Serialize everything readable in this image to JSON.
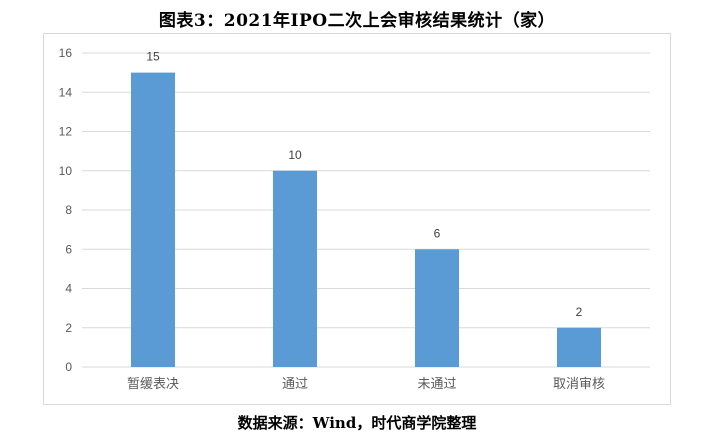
{
  "title": "图表3：2021年IPO二次上会审核结果统计（家）",
  "source": "数据来源：Wind，时代商学院整理",
  "chart_data": {
    "type": "bar",
    "title": "图表3：2021年IPO二次上会审核结果统计（家）",
    "categories": [
      "暂缓表决",
      "通过",
      "未通过",
      "取消审核"
    ],
    "values": [
      15,
      10,
      6,
      2
    ],
    "xlabel": "",
    "ylabel": "",
    "ylim": [
      0,
      16
    ],
    "yticks": [
      0,
      2,
      4,
      6,
      8,
      10,
      12,
      14,
      16
    ],
    "grid": true,
    "legend": "none",
    "bar_color": "#5b9bd5",
    "grid_color": "#d9d9d9",
    "data_labels": true
  }
}
